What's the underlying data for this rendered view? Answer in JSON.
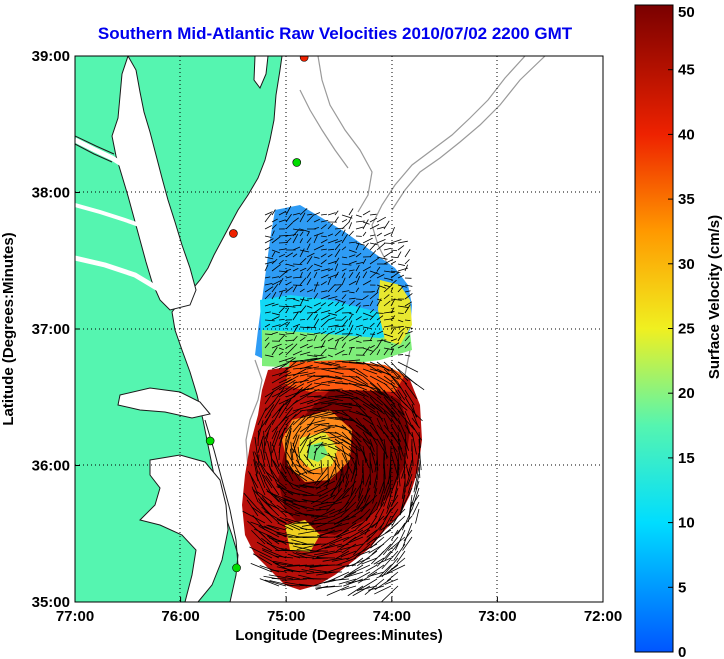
{
  "title": "Southern Mid-Atlantic Raw Velocities 2010/07/02 2200 GMT",
  "xlabel": "Longitude (Degrees:Minutes)",
  "ylabel": "Latitude (Degrees:Minutes)",
  "x_ticks": [
    "77:00",
    "76:00",
    "75:00",
    "74:00",
    "73:00",
    "72:00"
  ],
  "y_ticks": [
    "39:00",
    "38:00",
    "37:00",
    "36:00",
    "35:00"
  ],
  "colorbar": {
    "label": "Surface Velocity (cm/s)",
    "ticks": [
      "0",
      "5",
      "10",
      "15",
      "20",
      "25",
      "30",
      "35",
      "40",
      "45",
      "50"
    ],
    "min": 0,
    "max": 50
  },
  "colors": {
    "land": "#55f5b0",
    "ocean": "#ffffff",
    "title": "#0000ee",
    "station_green": "#00dd00",
    "station_red": "#ee2200"
  },
  "stations": [
    {
      "lon": -74.83,
      "lat": 38.99,
      "color": "red"
    },
    {
      "lon": -74.9,
      "lat": 38.22,
      "color": "green"
    },
    {
      "lon": -75.5,
      "lat": 37.7,
      "color": "red"
    },
    {
      "lon": -75.72,
      "lat": 36.18,
      "color": "green"
    },
    {
      "lon": -75.47,
      "lat": 35.25,
      "color": "green"
    }
  ]
}
